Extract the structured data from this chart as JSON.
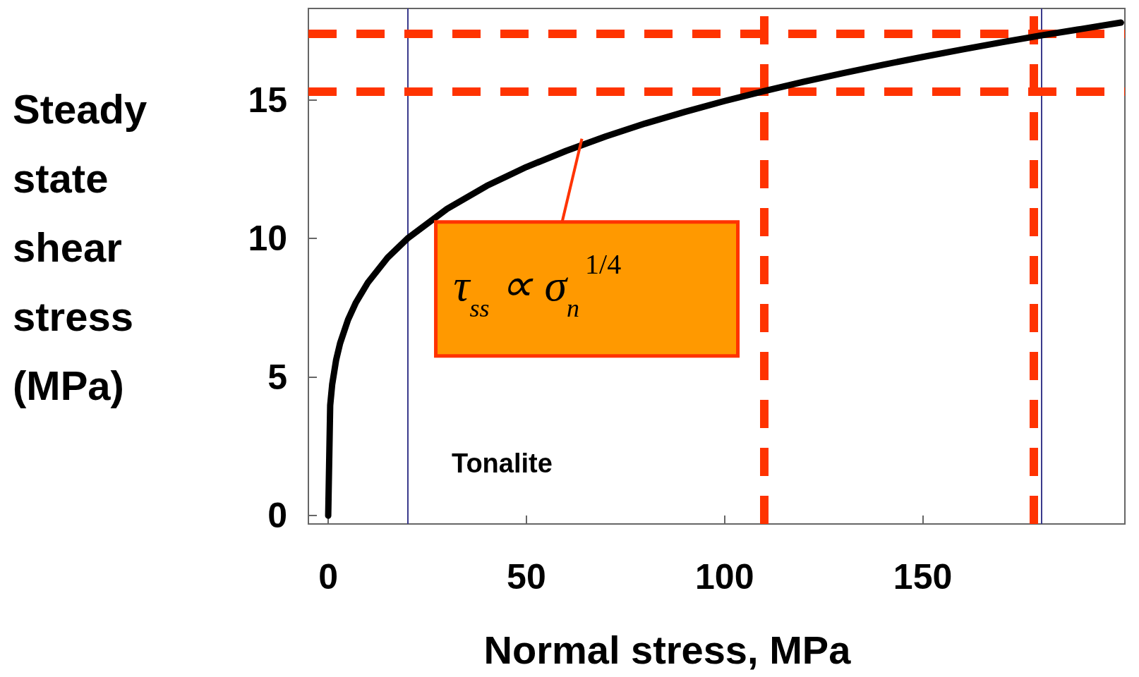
{
  "chart_data": {
    "type": "line",
    "xlabel": "Normal stress, MPa",
    "ylabel": "Steady state shear stress (MPa)",
    "x": [
      0,
      0.5,
      1,
      2,
      3,
      5,
      7,
      10,
      15,
      20,
      30,
      40,
      50,
      60,
      70,
      80,
      90,
      100,
      110,
      120,
      130,
      140,
      150,
      160,
      170,
      180,
      190,
      200
    ],
    "series": [
      {
        "color": "#000000",
        "values": [
          0,
          3.98,
          4.73,
          5.62,
          6.22,
          7.07,
          7.69,
          8.41,
          9.31,
          10.0,
          11.07,
          11.9,
          12.58,
          13.16,
          13.68,
          14.15,
          14.57,
          14.96,
          15.32,
          15.66,
          15.97,
          16.27,
          16.55,
          16.82,
          17.08,
          17.33,
          17.56,
          17.79
        ]
      }
    ],
    "xlim": [
      -5,
      201
    ],
    "xticks": [
      0,
      50,
      100,
      150
    ],
    "ylim": [
      -0.3,
      18.3
    ],
    "yticks": [
      0,
      5,
      10,
      15
    ],
    "line_style": "solid",
    "grid": false,
    "ref_lines": [
      {
        "axis": "x",
        "value": 20,
        "color": "#3a3a8c",
        "line_style": "solid"
      },
      {
        "axis": "x",
        "value": 180,
        "color": "#3a3a8c",
        "line_style": "solid"
      },
      {
        "axis": "y",
        "value": 15.3,
        "color": "#ff3300",
        "line_style": "dashed"
      },
      {
        "axis": "y",
        "value": 17.4,
        "color": "#ff3300",
        "line_style": "dashed"
      },
      {
        "axis": "x",
        "value": 110,
        "color": "#ff3300",
        "line_style": "dashed"
      },
      {
        "axis": "x",
        "value": 178,
        "color": "#ff3300",
        "line_style": "dashed"
      }
    ],
    "annotations": [
      {
        "text": "τ$_{ss}$ ∝ σ$_{n}$$^{1/4}$",
        "x": 64,
        "y": 13.6
      },
      "Tonalite"
    ]
  }
}
